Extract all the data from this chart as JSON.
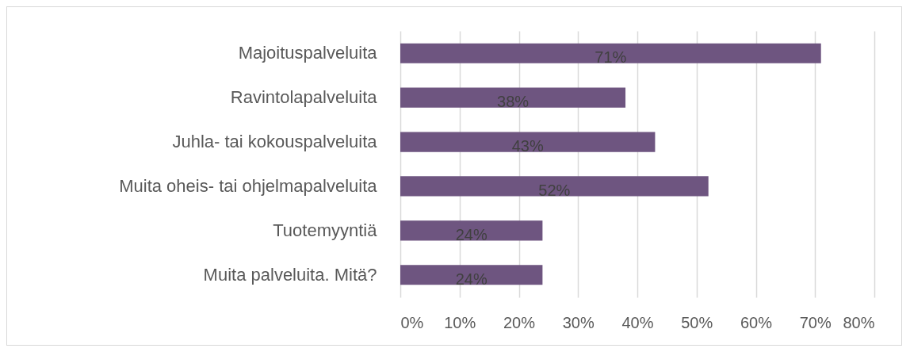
{
  "chart_data": {
    "type": "bar",
    "orientation": "horizontal",
    "categories": [
      "Majoituspalveluita",
      "Ravintolapalveluita",
      "Juhla- tai kokouspalveluita",
      "Muita oheis- tai ohjelmapalveluita",
      "Tuotemyyntiä",
      "Muita palveluita. Mitä?"
    ],
    "values": [
      71,
      38,
      43,
      52,
      24,
      24
    ],
    "value_labels": [
      "71%",
      "38%",
      "43%",
      "52%",
      "24%",
      "24%"
    ],
    "color": "#6e5580",
    "xlim": [
      0,
      80
    ],
    "xticks": [
      {
        "value": 0,
        "label": "0%"
      },
      {
        "value": 10,
        "label": "10%"
      },
      {
        "value": 20,
        "label": "20%"
      },
      {
        "value": 30,
        "label": "30%"
      },
      {
        "value": 40,
        "label": "40%"
      },
      {
        "value": 50,
        "label": "50%"
      },
      {
        "value": 60,
        "label": "60%"
      },
      {
        "value": 70,
        "label": "70%"
      },
      {
        "value": 80,
        "label": "80%"
      }
    ],
    "grid": "x"
  }
}
